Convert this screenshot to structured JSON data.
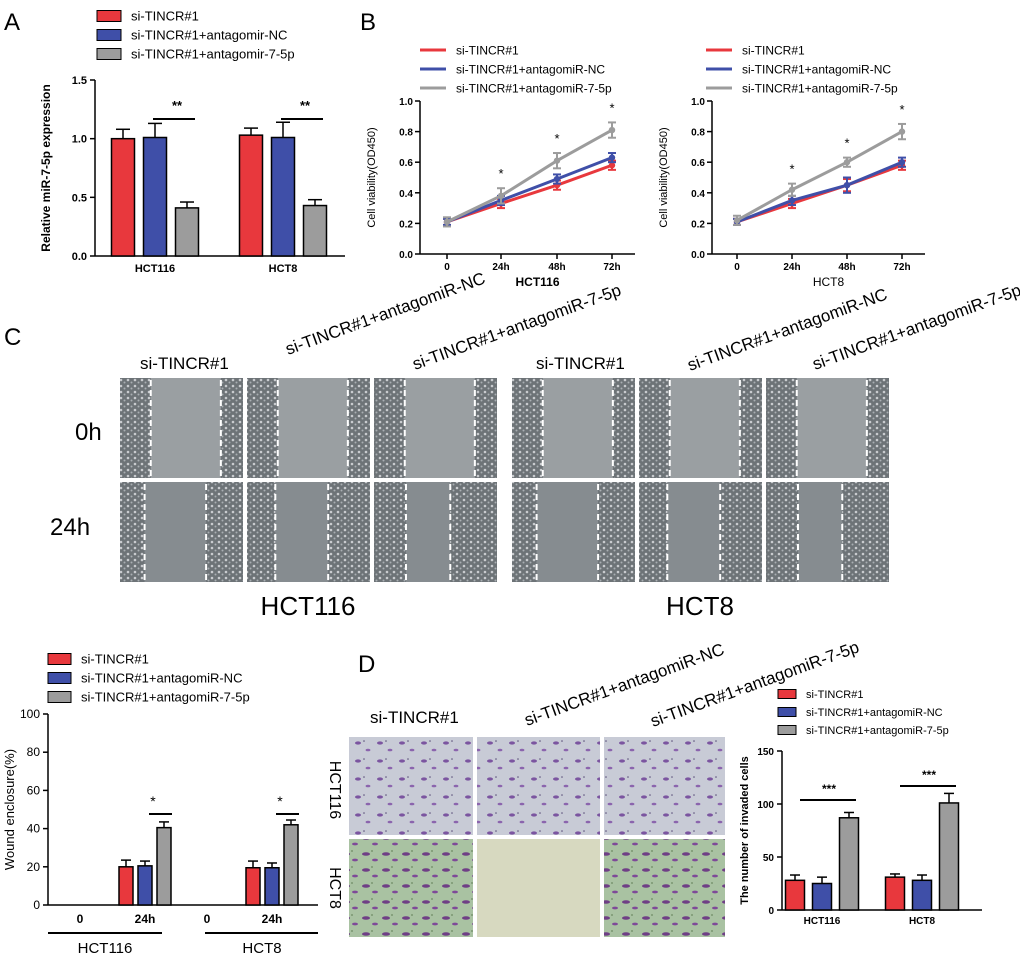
{
  "panel_letters": [
    "A",
    "B",
    "C",
    "D"
  ],
  "colors": {
    "red": "#e8383d",
    "blue": "#3f4fa8",
    "gray": "#9c9c9c",
    "cell_bg": "#8f9598",
    "crystal_violet": "#7b55a0",
    "green_bg": "#a8c3a4"
  },
  "panel_c": {
    "col_labels": [
      "si-TINCR#1",
      "si-TINCR#1+antagomiR-NC",
      "si-TINCR#1+antagomiR-7-5p",
      "si-TINCR#1",
      "si-TINCR#1+antagomiR-NC",
      "si-TINCR#1+antagomiR-7-5p"
    ],
    "row_labels": [
      "0h",
      "24h"
    ],
    "group_labels": [
      "HCT116",
      "HCT8"
    ]
  },
  "panel_d_images": {
    "col_labels": [
      "si-TINCR#1",
      "si-TINCR#1+antagomiR-NC",
      "si-TINCR#1+antagomiR-7-5p"
    ],
    "row_labels": [
      "HCT116",
      "HCT8"
    ]
  },
  "chart_data": [
    {
      "id": "A",
      "type": "bar",
      "legend": [
        "si-TINCR#1",
        "si-TINCR#1+antagomir-NC",
        "si-TINCR#1+antagomir-7-5p"
      ],
      "legend_placement": "top-left",
      "ylabel": "Relative miR-7-5p expression",
      "categories": [
        "HCT116",
        "HCT8"
      ],
      "yticks": [
        "0.0",
        "0.5",
        "1.0",
        "1.5"
      ],
      "ylim": [
        0,
        1.5
      ],
      "series": [
        {
          "name": "si-TINCR#1",
          "values": [
            1.0,
            1.03
          ],
          "errors": [
            0.08,
            0.06
          ]
        },
        {
          "name": "si-TINCR#1+antagomir-NC",
          "values": [
            1.01,
            1.01
          ],
          "errors": [
            0.12,
            0.13
          ]
        },
        {
          "name": "si-TINCR#1+antagomir-7-5p",
          "values": [
            0.41,
            0.43
          ],
          "errors": [
            0.05,
            0.05
          ]
        }
      ],
      "annotations": [
        "**",
        "**"
      ]
    },
    {
      "id": "B1",
      "type": "line",
      "legend": [
        "si-TINCR#1",
        "si-TINCR#1+antagomiR-NC",
        "si-TINCR#1+antagomiR-7-5p"
      ],
      "legend_placement": "top",
      "xlabel": "HCT116",
      "ylabel": "Cell viability(OD450)",
      "x": [
        "0",
        "24h",
        "48h",
        "72h"
      ],
      "yticks": [
        "0.0",
        "0.2",
        "0.4",
        "0.6",
        "0.8",
        "1.0"
      ],
      "ylim": [
        0,
        1.0
      ],
      "series": [
        {
          "name": "si-TINCR#1",
          "values": [
            0.21,
            0.33,
            0.45,
            0.58
          ],
          "errors": [
            0.02,
            0.03,
            0.03,
            0.03
          ]
        },
        {
          "name": "si-TINCR#1+antagomiR-NC",
          "values": [
            0.21,
            0.35,
            0.49,
            0.63
          ],
          "errors": [
            0.02,
            0.03,
            0.03,
            0.03
          ]
        },
        {
          "name": "si-TINCR#1+antagomiR-7-5p",
          "values": [
            0.21,
            0.38,
            0.61,
            0.81
          ],
          "errors": [
            0.03,
            0.05,
            0.05,
            0.05
          ]
        }
      ],
      "annotations": [
        "*",
        "*",
        "*"
      ]
    },
    {
      "id": "B2",
      "type": "line",
      "legend": [
        "si-TINCR#1",
        "si-TINCR#1+antagomiR-NC",
        "si-TINCR#1+antagomiR-7-5p"
      ],
      "legend_placement": "top",
      "xlabel": "HCT8",
      "ylabel": "Cell viability(OD450)",
      "x": [
        "0",
        "24h",
        "48h",
        "72h"
      ],
      "yticks": [
        "0.0",
        "0.2",
        "0.4",
        "0.6",
        "0.8",
        "1.0"
      ],
      "ylim": [
        0,
        1.0
      ],
      "series": [
        {
          "name": "si-TINCR#1",
          "values": [
            0.21,
            0.33,
            0.45,
            0.58
          ],
          "errors": [
            0.02,
            0.03,
            0.04,
            0.03
          ]
        },
        {
          "name": "si-TINCR#1+antagomiR-NC",
          "values": [
            0.21,
            0.35,
            0.45,
            0.6
          ],
          "errors": [
            0.02,
            0.03,
            0.05,
            0.03
          ]
        },
        {
          "name": "si-TINCR#1+antagomiR-7-5p",
          "values": [
            0.22,
            0.42,
            0.6,
            0.8
          ],
          "errors": [
            0.03,
            0.04,
            0.03,
            0.05
          ]
        }
      ],
      "annotations": [
        "*",
        "*",
        "*"
      ]
    },
    {
      "id": "C",
      "type": "bar",
      "legend": [
        "si-TINCR#1",
        "si-TINCR#1+antagomiR-NC",
        "si-TINCR#1+antagomiR-7-5p"
      ],
      "legend_placement": "top-left",
      "ylabel": "Wound enclosure(%)",
      "categories": [
        "0",
        "24h",
        "0",
        "24h"
      ],
      "groups": [
        "HCT116",
        "HCT8"
      ],
      "yticks": [
        "0",
        "20",
        "40",
        "60",
        "80",
        "100"
      ],
      "ylim": [
        0,
        100
      ],
      "series": [
        {
          "name": "si-TINCR#1",
          "values": [
            0,
            20,
            0,
            19.5
          ],
          "errors": [
            0,
            3.5,
            0,
            3.5
          ]
        },
        {
          "name": "si-TINCR#1+antagomiR-NC",
          "values": [
            0,
            20.5,
            0,
            19.5
          ],
          "errors": [
            0,
            2.5,
            0,
            2.5
          ]
        },
        {
          "name": "si-TINCR#1+antagomiR-7-5p",
          "values": [
            0,
            40.5,
            0,
            42
          ],
          "errors": [
            0,
            3,
            0,
            2.5
          ]
        }
      ],
      "annotations": [
        "*",
        "*"
      ]
    },
    {
      "id": "D",
      "type": "bar",
      "legend": [
        "si-TINCR#1",
        "si-TINCR#1+antagomiR-NC",
        "si-TINCR#1+antagomiR-7-5p"
      ],
      "legend_placement": "top-left",
      "ylabel": "The number of invaded cells",
      "categories": [
        "HCT116",
        "HCT8"
      ],
      "yticks": [
        "0",
        "50",
        "100",
        "150"
      ],
      "ylim": [
        0,
        150
      ],
      "series": [
        {
          "name": "si-TINCR#1",
          "values": [
            28,
            31
          ],
          "errors": [
            5,
            3
          ]
        },
        {
          "name": "si-TINCR#1+antagomiR-NC",
          "values": [
            25,
            28
          ],
          "errors": [
            6,
            5
          ]
        },
        {
          "name": "si-TINCR#1+antagomiR-7-5p",
          "values": [
            87,
            101
          ],
          "errors": [
            5,
            9
          ]
        }
      ],
      "annotations": [
        "***",
        "***"
      ]
    }
  ]
}
